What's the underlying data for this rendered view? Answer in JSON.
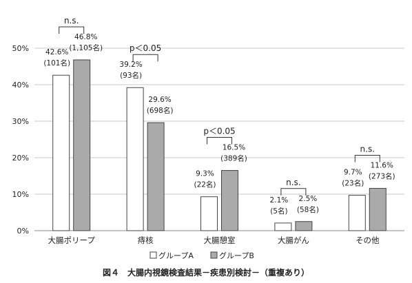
{
  "chart_data": {
    "type": "bar",
    "caption": "図４　大腸内視鏡検査結果－疾患別検討－（重複あり）",
    "categories": [
      "大腸ポリープ",
      "痔核",
      "大腸憩室",
      "大腸がん",
      "その他"
    ],
    "ylim": [
      0,
      50
    ],
    "yticks": [
      "0%",
      "10%",
      "20%",
      "30%",
      "40%",
      "50%"
    ],
    "grid": true,
    "legend_position": "bottom",
    "series": [
      {
        "name": "グループA",
        "color": "#ffffff",
        "values": [
          42.6,
          39.2,
          9.3,
          2.1,
          9.7
        ],
        "labels_pct": [
          "42.6%",
          "39.2%",
          "9.3%",
          "2.1%",
          "9.7%"
        ],
        "labels_n": [
          "(101名)",
          "(93名)",
          "(22名)",
          "(5名)",
          "(23名)"
        ]
      },
      {
        "name": "グループB",
        "color": "#aaaaaa",
        "values": [
          46.8,
          29.6,
          16.5,
          2.5,
          11.6
        ],
        "labels_pct": [
          "46.8%",
          "29.6%",
          "16.5%",
          "2.5%",
          "11.6%"
        ],
        "labels_n": [
          "(1,105名)",
          "(698名)",
          "(389名)",
          "(58名)",
          "(273名)"
        ]
      }
    ],
    "significance": [
      "n.s.",
      "p＜0.05",
      "p＜0.05",
      "n.s.",
      "n.s."
    ]
  }
}
